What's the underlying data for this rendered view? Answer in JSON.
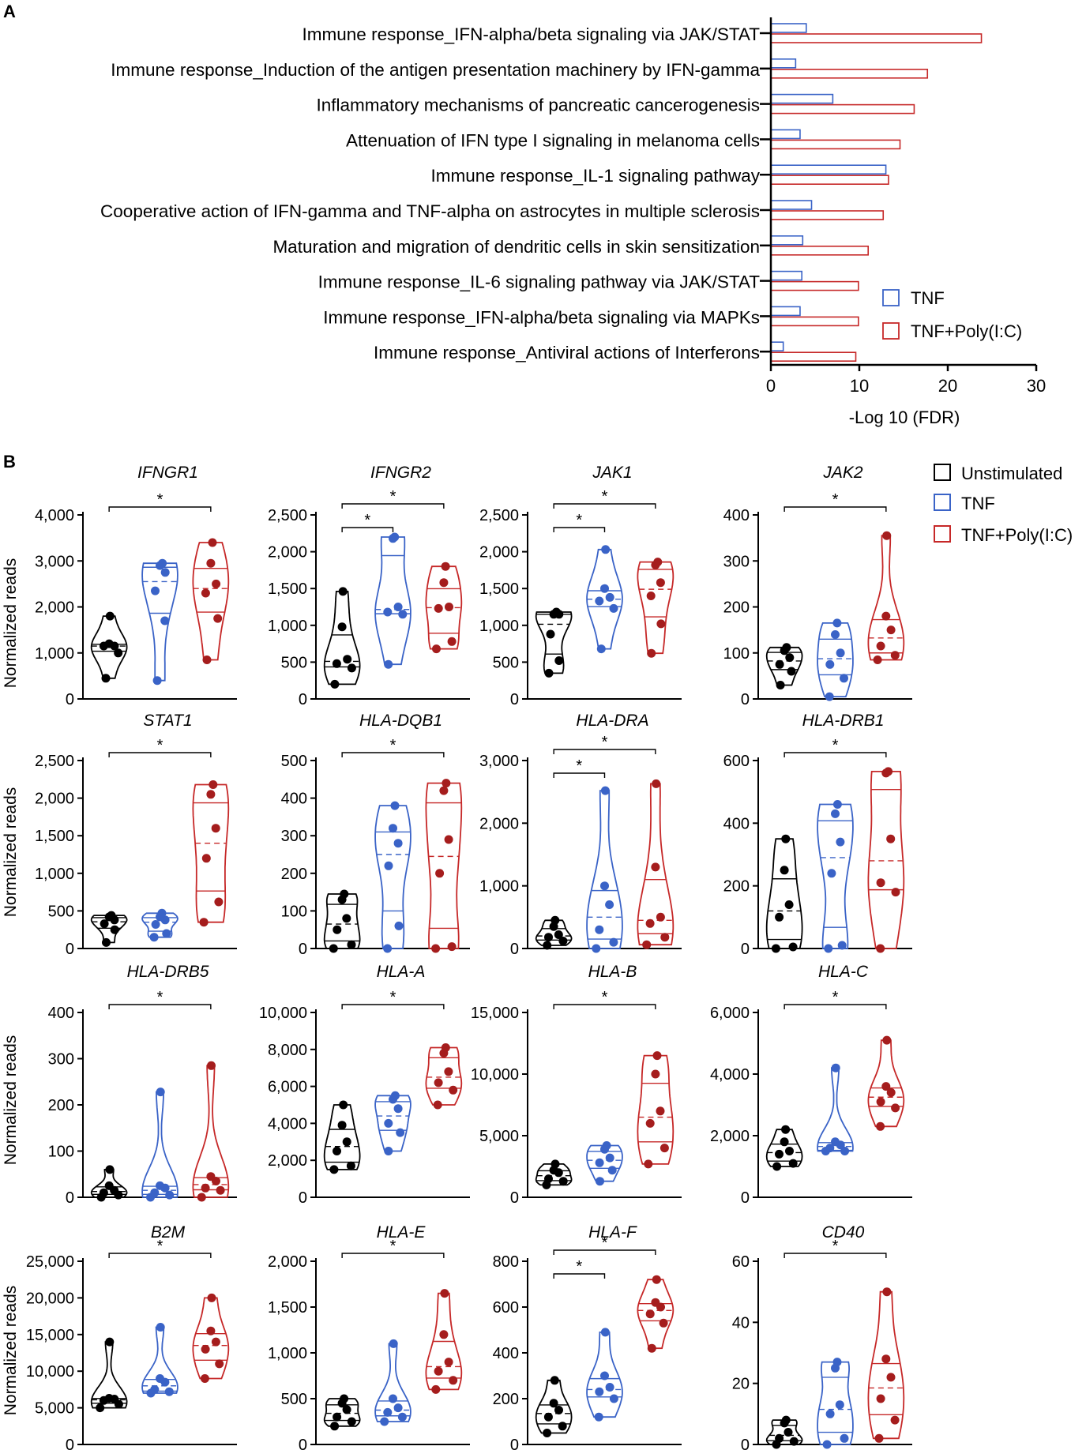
{
  "colors": {
    "unstim": "#000000",
    "tnf": "#3a63c7",
    "poly": "#c62828",
    "poly_dot": "#a51d1d"
  },
  "chart_data": {
    "panel_a": {
      "type": "bar",
      "panel_label": "A",
      "xlabel": "-Log 10 (FDR)",
      "xlim": [
        0,
        30
      ],
      "xticks": [
        0,
        10,
        20,
        30
      ],
      "categories": [
        "Immune response_IFN-alpha/beta signaling via JAK/STAT",
        "Immune response_Induction of the antigen presentation machinery by IFN-gamma",
        "Inflammatory mechanisms of pancreatic cancerogenesis",
        "Attenuation of IFN type I signaling in melanoma cells",
        "Immune response_IL-1 signaling pathway",
        "Cooperative action of IFN-gamma and TNF-alpha on astrocytes in multiple sclerosis",
        "Maturation and migration of dendritic cells in skin sensitization",
        "Immune response_IL-6 signaling pathway via JAK/STAT",
        "Immune response_IFN-alpha/beta signaling via MAPKs",
        "Immune response_Antiviral actions of Interferons"
      ],
      "series": [
        {
          "name": "TNF",
          "values": [
            4.0,
            2.8,
            7.0,
            3.3,
            13.0,
            4.6,
            3.6,
            3.5,
            3.3,
            1.4
          ]
        },
        {
          "name": "TNF+Poly(I:C)",
          "values": [
            23.8,
            17.7,
            16.2,
            14.6,
            13.3,
            12.7,
            11.0,
            9.9,
            9.9,
            9.6
          ]
        }
      ]
    },
    "panel_b": {
      "type": "violin",
      "panel_label": "B",
      "ylabel": "Normalized reads",
      "legend": [
        "Unstimulated",
        "TNF",
        "TNF+Poly(I:C)"
      ],
      "charts": [
        {
          "gene": "IFNGR1",
          "ymax": 4000,
          "ticks": [
            0,
            1000,
            2000,
            3000,
            4000
          ],
          "tick_labels": [
            "0",
            "1,000",
            "2,000",
            "3,000",
            "4,000"
          ],
          "groups": [
            [
              450,
              1000,
              1150,
              1150,
              1200,
              1800
            ],
            [
              400,
              1700,
              2350,
              2750,
              2900,
              2950
            ],
            [
              850,
              1750,
              2300,
              2500,
              2950,
              3400
            ]
          ],
          "sig": [
            [
              0,
              2
            ]
          ],
          "star": "*"
        },
        {
          "gene": "IFNGR2",
          "ymax": 2500,
          "ticks": [
            0,
            500,
            1000,
            1500,
            2000,
            2500
          ],
          "tick_labels": [
            "0",
            "500",
            "1,000",
            "1,500",
            "2,000",
            "2,500"
          ],
          "groups": [
            [
              200,
              420,
              480,
              540,
              980,
              1460
            ],
            [
              470,
              1150,
              1180,
              1250,
              2180,
              2200
            ],
            [
              680,
              780,
              1230,
              1250,
              1580,
              1800
            ]
          ],
          "sig": [
            [
              0,
              1
            ],
            [
              0,
              2
            ]
          ],
          "star": "*"
        },
        {
          "gene": "JAK1",
          "ymax": 2500,
          "ticks": [
            0,
            500,
            1000,
            1500,
            2000,
            2500
          ],
          "tick_labels": [
            "0",
            "500",
            "1,000",
            "1,500",
            "2,000",
            "2,500"
          ],
          "groups": [
            [
              350,
              520,
              880,
              1150,
              1150,
              1180
            ],
            [
              680,
              1230,
              1330,
              1380,
              1500,
              2030
            ],
            [
              620,
              1020,
              1400,
              1580,
              1820,
              1860
            ]
          ],
          "sig": [
            [
              0,
              1
            ],
            [
              0,
              2
            ]
          ],
          "star": "*"
        },
        {
          "gene": "JAK2",
          "ymax": 400,
          "ticks": [
            0,
            100,
            200,
            300,
            400
          ],
          "tick_labels": [
            "0",
            "100",
            "200",
            "300",
            "400"
          ],
          "groups": [
            [
              30,
              60,
              75,
              90,
              105,
              112
            ],
            [
              5,
              45,
              75,
              100,
              140,
              165
            ],
            [
              85,
              95,
              115,
              150,
              180,
              355
            ]
          ],
          "sig": [
            [
              0,
              2
            ]
          ],
          "star": "*"
        },
        {
          "gene": "STAT1",
          "ymax": 2500,
          "ticks": [
            0,
            500,
            1000,
            1500,
            2000,
            2500
          ],
          "tick_labels": [
            "0",
            "500",
            "1,000",
            "1,500",
            "2,000",
            "2,500"
          ],
          "groups": [
            [
              80,
              250,
              330,
              380,
              420,
              440
            ],
            [
              150,
              200,
              320,
              380,
              420,
              470
            ],
            [
              350,
              620,
              1200,
              1600,
              2050,
              2180
            ]
          ],
          "sig": [
            [
              0,
              2
            ]
          ],
          "star": "*"
        },
        {
          "gene": "HLA-DQB1",
          "ymax": 500,
          "ticks": [
            0,
            100,
            200,
            300,
            400,
            500
          ],
          "tick_labels": [
            "0",
            "100",
            "200",
            "300",
            "400",
            "500"
          ],
          "groups": [
            [
              0,
              10,
              50,
              80,
              130,
              145
            ],
            [
              0,
              60,
              220,
              280,
              320,
              380
            ],
            [
              0,
              5,
              200,
              290,
              420,
              440
            ]
          ],
          "sig": [
            [
              0,
              2
            ]
          ],
          "star": "*"
        },
        {
          "gene": "HLA-DRA",
          "ymax": 3000,
          "ticks": [
            0,
            1000,
            2000,
            3000
          ],
          "tick_labels": [
            "0",
            "1,000",
            "2,000",
            "3,000"
          ],
          "groups": [
            [
              50,
              120,
              180,
              220,
              350,
              450
            ],
            [
              0,
              100,
              300,
              700,
              1000,
              2520
            ],
            [
              60,
              180,
              400,
              500,
              1300,
              2630
            ]
          ],
          "sig": [
            [
              0,
              1
            ],
            [
              0,
              2
            ]
          ],
          "star": "*"
        },
        {
          "gene": "HLA-DRB1",
          "ymax": 600,
          "ticks": [
            0,
            200,
            400,
            600
          ],
          "tick_labels": [
            "0",
            "200",
            "400",
            "600"
          ],
          "groups": [
            [
              0,
              5,
              100,
              140,
              250,
              350
            ],
            [
              0,
              10,
              240,
              340,
              430,
              460
            ],
            [
              0,
              180,
              210,
              350,
              560,
              565
            ]
          ],
          "sig": [
            [
              0,
              2
            ]
          ],
          "star": "*"
        },
        {
          "gene": "HLA-DRB5",
          "ymax": 400,
          "ticks": [
            0,
            100,
            200,
            300,
            400
          ],
          "tick_labels": [
            "0",
            "100",
            "200",
            "300",
            "400"
          ],
          "groups": [
            [
              0,
              5,
              10,
              15,
              25,
              60
            ],
            [
              0,
              5,
              10,
              20,
              25,
              228
            ],
            [
              0,
              15,
              20,
              35,
              45,
              285
            ]
          ],
          "sig": [
            [
              0,
              2
            ]
          ],
          "star": "*"
        },
        {
          "gene": "HLA-A",
          "ymax": 10000,
          "ticks": [
            0,
            2000,
            4000,
            6000,
            8000,
            10000
          ],
          "tick_labels": [
            "0",
            "2,000",
            "4,000",
            "6,000",
            "8,000",
            "10,000"
          ],
          "groups": [
            [
              1500,
              1700,
              2500,
              3000,
              3900,
              5000
            ],
            [
              2500,
              3500,
              4000,
              4800,
              5300,
              5500
            ],
            [
              5000,
              5800,
              6200,
              6800,
              7800,
              8100
            ]
          ],
          "sig": [
            [
              0,
              2
            ]
          ],
          "star": "*"
        },
        {
          "gene": "HLA-B",
          "ymax": 15000,
          "ticks": [
            0,
            5000,
            10000,
            15000
          ],
          "tick_labels": [
            "0",
            "5,000",
            "10,000",
            "15,000"
          ],
          "groups": [
            [
              1000,
              1300,
              1500,
              2000,
              2200,
              2700
            ],
            [
              1300,
              2200,
              2800,
              3200,
              3900,
              4200
            ],
            [
              2700,
              4000,
              6000,
              7000,
              10000,
              11500
            ]
          ],
          "sig": [
            [
              0,
              2
            ]
          ],
          "star": "*"
        },
        {
          "gene": "HLA-C",
          "ymax": 6000,
          "ticks": [
            0,
            2000,
            4000,
            6000
          ],
          "tick_labels": [
            "0",
            "2,000",
            "4,000",
            "6,000"
          ],
          "groups": [
            [
              1000,
              1100,
              1400,
              1500,
              1800,
              2200
            ],
            [
              1500,
              1500,
              1600,
              1700,
              1800,
              4200
            ],
            [
              2300,
              2900,
              3100,
              3400,
              3600,
              5100
            ]
          ],
          "sig": [
            [
              0,
              2
            ]
          ],
          "star": "*"
        },
        {
          "gene": "B2M",
          "ymax": 25000,
          "ticks": [
            0,
            5000,
            10000,
            15000,
            20000,
            25000
          ],
          "tick_labels": [
            "0",
            "5,000",
            "10,000",
            "15,000",
            "20,000",
            "25,000"
          ],
          "groups": [
            [
              5000,
              5500,
              6000,
              6200,
              6300,
              14000
            ],
            [
              7000,
              7200,
              7500,
              8500,
              9000,
              16000
            ],
            [
              9000,
              11000,
              13000,
              14000,
              15500,
              20000
            ]
          ],
          "sig": [
            [
              0,
              2
            ]
          ],
          "star": "*"
        },
        {
          "gene": "HLA-E",
          "ymax": 2000,
          "ticks": [
            0,
            500,
            1000,
            1500,
            2000
          ],
          "tick_labels": [
            "0",
            "500",
            "1,000",
            "1,500",
            "2,000"
          ],
          "groups": [
            [
              200,
              250,
              300,
              380,
              450,
              500
            ],
            [
              250,
              300,
              350,
              400,
              500,
              1100
            ],
            [
              600,
              700,
              800,
              900,
              1200,
              1650
            ]
          ],
          "sig": [
            [
              0,
              2
            ]
          ],
          "star": "*"
        },
        {
          "gene": "HLA-F",
          "ymax": 800,
          "ticks": [
            0,
            200,
            400,
            600,
            800
          ],
          "tick_labels": [
            "0",
            "200",
            "400",
            "600",
            "800"
          ],
          "groups": [
            [
              50,
              80,
              120,
              150,
              180,
              280
            ],
            [
              120,
              200,
              230,
              250,
              300,
              490
            ],
            [
              420,
              530,
              570,
              600,
              620,
              720
            ]
          ],
          "sig": [
            [
              0,
              1
            ],
            [
              0,
              2
            ]
          ],
          "star": "*"
        },
        {
          "gene": "CD40",
          "ymax": 60,
          "ticks": [
            0,
            20,
            40,
            60
          ],
          "tick_labels": [
            "0",
            "20",
            "40",
            "60"
          ],
          "groups": [
            [
              0,
              1,
              2,
              4,
              7,
              8
            ],
            [
              0,
              2,
              10,
              13,
              25,
              27
            ],
            [
              2,
              8,
              15,
              22,
              28,
              50
            ]
          ],
          "sig": [
            [
              0,
              2
            ]
          ],
          "star": "*"
        }
      ]
    }
  }
}
